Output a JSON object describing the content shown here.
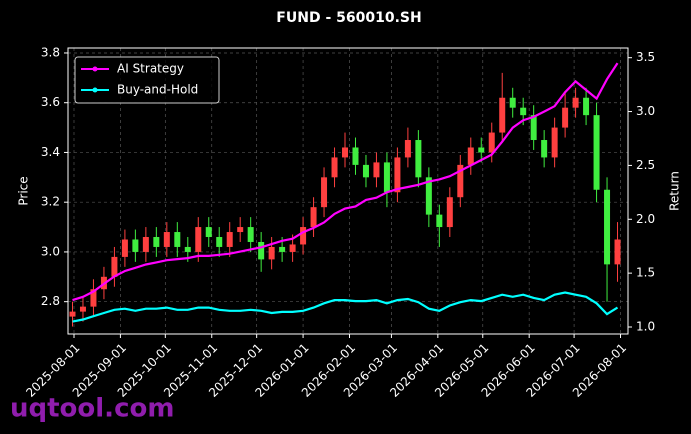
{
  "chart_data": {
    "type": "candlestick",
    "title": "FUND - 560010.SH",
    "ylabel": "Price",
    "y2label": "Return",
    "watermark": "uqtool.com",
    "x": [
      "2025-07-31",
      "2025-08-07",
      "2025-08-14",
      "2025-08-21",
      "2025-08-28",
      "2025-09-04",
      "2025-09-11",
      "2025-09-18",
      "2025-09-25",
      "2025-10-02",
      "2025-10-09",
      "2025-10-16",
      "2025-10-23",
      "2025-10-30",
      "2025-11-06",
      "2025-11-13",
      "2025-11-20",
      "2025-11-27",
      "2025-12-04",
      "2025-12-11",
      "2025-12-18",
      "2025-12-25",
      "2026-01-01",
      "2026-01-08",
      "2026-01-15",
      "2026-01-22",
      "2026-01-29",
      "2026-02-05",
      "2026-02-12",
      "2026-02-19",
      "2026-02-26",
      "2026-03-05",
      "2026-03-12",
      "2026-03-19",
      "2026-03-26",
      "2026-04-02",
      "2026-04-09",
      "2026-04-16",
      "2026-04-23",
      "2026-04-30",
      "2026-05-07",
      "2026-05-14",
      "2026-05-21",
      "2026-05-28",
      "2026-06-04",
      "2026-06-11",
      "2026-06-18",
      "2026-06-25",
      "2026-07-02",
      "2026-07-09",
      "2026-07-16",
      "2026-07-23",
      "2026-07-30"
    ],
    "candles": {
      "open": [
        2.74,
        2.76,
        2.78,
        2.85,
        2.9,
        2.98,
        3.05,
        3.0,
        3.06,
        3.02,
        3.08,
        3.02,
        3.0,
        3.1,
        3.06,
        3.02,
        3.08,
        3.1,
        3.04,
        2.97,
        3.02,
        3.0,
        3.03,
        3.1,
        3.18,
        3.3,
        3.38,
        3.42,
        3.35,
        3.3,
        3.36,
        3.24,
        3.38,
        3.45,
        3.3,
        3.15,
        3.1,
        3.22,
        3.35,
        3.42,
        3.4,
        3.48,
        3.62,
        3.58,
        3.55,
        3.45,
        3.38,
        3.5,
        3.58,
        3.62,
        3.55,
        3.25,
        2.95
      ],
      "high": [
        2.8,
        2.82,
        2.89,
        2.94,
        3.02,
        3.09,
        3.09,
        3.1,
        3.1,
        3.12,
        3.12,
        3.06,
        3.14,
        3.14,
        3.1,
        3.12,
        3.14,
        3.14,
        3.08,
        3.06,
        3.06,
        3.07,
        3.14,
        3.22,
        3.34,
        3.42,
        3.48,
        3.46,
        3.39,
        3.4,
        3.4,
        3.42,
        3.5,
        3.49,
        3.34,
        3.19,
        3.26,
        3.39,
        3.46,
        3.46,
        3.52,
        3.72,
        3.66,
        3.62,
        3.59,
        3.49,
        3.54,
        3.64,
        3.66,
        3.66,
        3.6,
        3.3,
        3.12
      ],
      "low": [
        2.7,
        2.72,
        2.74,
        2.81,
        2.86,
        2.94,
        2.96,
        2.96,
        2.98,
        2.98,
        2.98,
        2.96,
        2.96,
        3.02,
        2.98,
        2.98,
        3.04,
        3.0,
        2.92,
        2.93,
        2.96,
        2.96,
        2.99,
        3.06,
        3.14,
        3.26,
        3.34,
        3.31,
        3.26,
        3.26,
        3.18,
        3.2,
        3.34,
        3.26,
        3.1,
        3.02,
        3.06,
        3.18,
        3.31,
        3.36,
        3.36,
        3.44,
        3.54,
        3.51,
        3.41,
        3.34,
        3.34,
        3.46,
        3.54,
        3.51,
        3.2,
        2.8,
        2.88
      ],
      "close": [
        2.76,
        2.78,
        2.85,
        2.9,
        2.98,
        3.05,
        3.0,
        3.06,
        3.02,
        3.08,
        3.02,
        3.0,
        3.1,
        3.06,
        3.02,
        3.08,
        3.1,
        3.04,
        2.97,
        3.02,
        3.0,
        3.03,
        3.1,
        3.18,
        3.3,
        3.38,
        3.42,
        3.35,
        3.3,
        3.36,
        3.24,
        3.38,
        3.45,
        3.3,
        3.15,
        3.1,
        3.22,
        3.35,
        3.42,
        3.4,
        3.48,
        3.62,
        3.58,
        3.55,
        3.45,
        3.38,
        3.5,
        3.58,
        3.62,
        3.55,
        3.25,
        2.95,
        3.05
      ]
    },
    "up_color": "#ff4040",
    "down_color": "#40ee40",
    "series": [
      {
        "name": "AI Strategy",
        "color": "#ff00ff",
        "axis": "y2",
        "values": [
          1.25,
          1.28,
          1.33,
          1.4,
          1.47,
          1.52,
          1.55,
          1.58,
          1.6,
          1.62,
          1.63,
          1.64,
          1.66,
          1.66,
          1.67,
          1.68,
          1.7,
          1.72,
          1.74,
          1.77,
          1.8,
          1.82,
          1.88,
          1.92,
          1.97,
          2.05,
          2.1,
          2.12,
          2.18,
          2.2,
          2.25,
          2.28,
          2.3,
          2.32,
          2.35,
          2.37,
          2.4,
          2.45,
          2.5,
          2.55,
          2.6,
          2.72,
          2.85,
          2.92,
          2.95,
          3.0,
          3.05,
          3.18,
          3.28,
          3.2,
          3.12,
          3.3,
          3.45
        ]
      },
      {
        "name": "Buy-and-Hold",
        "color": "#00ffff",
        "axis": "y2",
        "values": [
          1.05,
          1.07,
          1.1,
          1.13,
          1.16,
          1.17,
          1.15,
          1.17,
          1.17,
          1.18,
          1.16,
          1.16,
          1.18,
          1.18,
          1.16,
          1.15,
          1.15,
          1.16,
          1.15,
          1.13,
          1.14,
          1.14,
          1.15,
          1.18,
          1.22,
          1.25,
          1.25,
          1.24,
          1.24,
          1.25,
          1.22,
          1.25,
          1.26,
          1.23,
          1.17,
          1.15,
          1.2,
          1.23,
          1.25,
          1.24,
          1.27,
          1.3,
          1.28,
          1.3,
          1.27,
          1.25,
          1.3,
          1.32,
          1.3,
          1.28,
          1.22,
          1.12,
          1.18
        ]
      }
    ],
    "xlim": [
      "2025-07-28",
      "2026-08-06"
    ],
    "xticks": [
      "2025-08-01",
      "2025-09-01",
      "2025-10-01",
      "2025-11-01",
      "2025-12-01",
      "2026-01-01",
      "2026-02-01",
      "2026-03-01",
      "2026-04-01",
      "2026-05-01",
      "2026-06-01",
      "2026-07-01",
      "2026-08-01"
    ],
    "ylim": [
      2.67,
      3.82
    ],
    "yticks": [
      2.8,
      {
        "value": 3,
        "label": "3.0"
      },
      3.2,
      3.4,
      3.6,
      3.8
    ],
    "y2lim": [
      0.935,
      3.59
    ],
    "y2ticks": [
      {
        "value": 1,
        "label": "1.0"
      },
      1.5,
      {
        "value": 2,
        "label": "2.0"
      },
      2.5,
      {
        "value": 3,
        "label": "3.0"
      },
      3.5
    ],
    "grid": true,
    "legend": "upper left"
  }
}
